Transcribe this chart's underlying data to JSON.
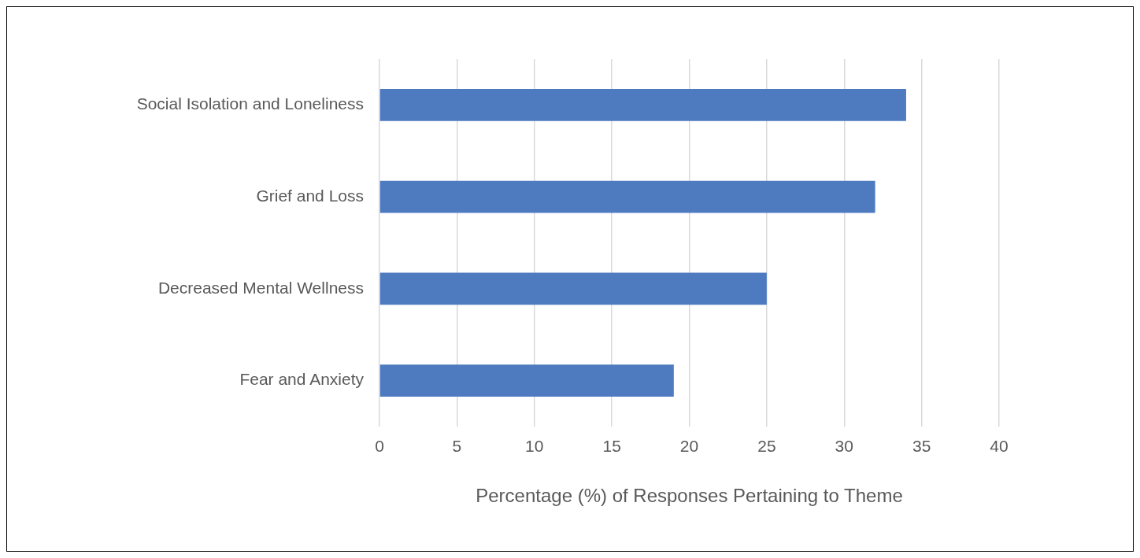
{
  "chart_data": {
    "type": "bar",
    "orientation": "horizontal",
    "xlabel": "Percentage (%) of Responses Pertaining to Theme",
    "categories": [
      "Social Isolation and Loneliness",
      "Grief and Loss",
      "Decreased Mental Wellness",
      "Fear and Anxiety"
    ],
    "values": [
      34,
      32,
      25,
      19
    ],
    "color": "#4e7bc0",
    "xlim": [
      0,
      40
    ],
    "xticks": [
      0,
      5,
      10,
      15,
      20,
      25,
      30,
      35,
      40
    ],
    "grid": "x"
  }
}
